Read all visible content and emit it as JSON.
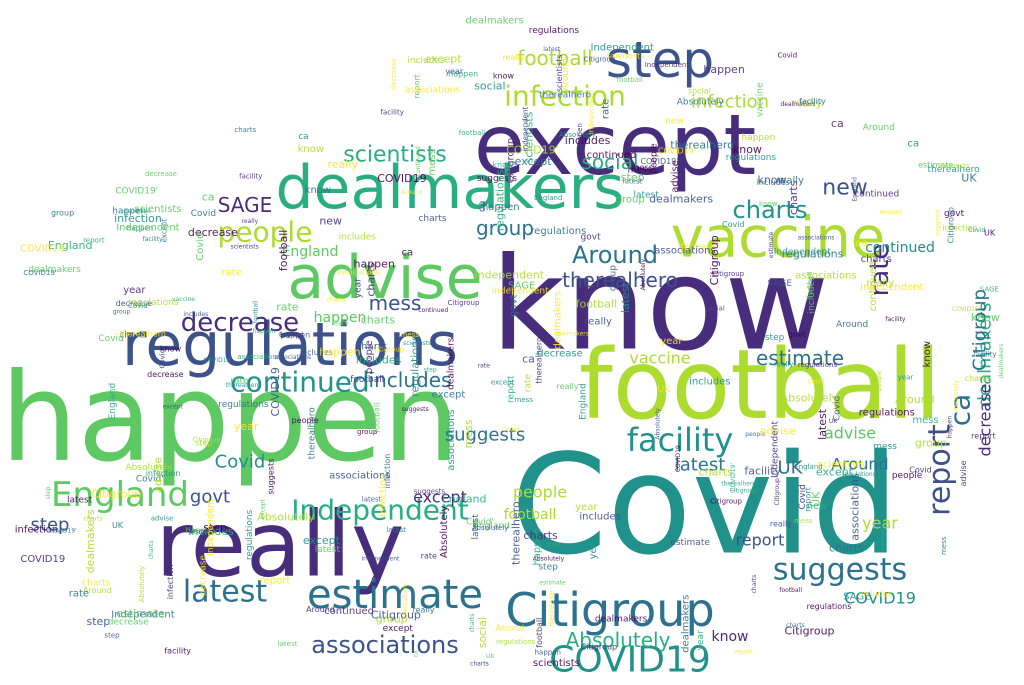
{
  "palette": {
    "purple": "#440154",
    "indigo": "#472d7b",
    "blue": "#3b528b",
    "slate": "#2c728e",
    "teal": "#21918c",
    "sea": "#28ae80",
    "green": "#5ec962",
    "lime": "#addc30",
    "yellow": "#fde725"
  },
  "words": [
    {
      "text": "know",
      "color": "indigo"
    },
    {
      "text": "Covid",
      "color": "teal"
    },
    {
      "text": "happen",
      "color": "green"
    },
    {
      "text": "football",
      "color": "lime"
    },
    {
      "text": "except",
      "color": "indigo"
    },
    {
      "text": "really",
      "color": "indigo"
    },
    {
      "text": "regulations",
      "color": "blue"
    },
    {
      "text": "dealmakers",
      "color": "sea"
    },
    {
      "text": "advise",
      "color": "green"
    },
    {
      "text": "vaccine",
      "color": "lime"
    },
    {
      "text": "step",
      "color": "blue"
    },
    {
      "text": "Citigroup",
      "color": "slate"
    },
    {
      "text": "estimate",
      "color": "slate"
    },
    {
      "text": "COVID19",
      "color": "teal"
    },
    {
      "text": "England",
      "color": "green"
    },
    {
      "text": "facility",
      "color": "teal"
    },
    {
      "text": "continued",
      "color": "teal"
    },
    {
      "text": "suggests",
      "color": "slate"
    },
    {
      "text": "infection",
      "color": "lime"
    },
    {
      "text": "latest",
      "color": "slate"
    },
    {
      "text": "report",
      "color": "blue"
    },
    {
      "text": "Independent",
      "color": "sea"
    },
    {
      "text": "decrease",
      "color": "indigo"
    },
    {
      "text": "people",
      "color": "lime"
    },
    {
      "text": "associations",
      "color": "blue"
    },
    {
      "text": "Around",
      "color": "slate"
    },
    {
      "text": "therealhero",
      "color": "blue"
    },
    {
      "text": "scientists",
      "color": "sea"
    },
    {
      "text": "charts",
      "color": "teal"
    },
    {
      "text": "rate",
      "color": "indigo"
    },
    {
      "text": "includes",
      "color": "slate"
    },
    {
      "text": "social",
      "color": "sea"
    },
    {
      "text": "group",
      "color": "slate"
    },
    {
      "text": "mess",
      "color": "blue"
    },
    {
      "text": "SAGE",
      "color": "indigo"
    },
    {
      "text": "new",
      "color": "blue"
    },
    {
      "text": "Absolutely",
      "color": "sea"
    },
    {
      "text": "govt",
      "color": "blue"
    },
    {
      "text": "year",
      "color": "lime"
    },
    {
      "text": "UK",
      "color": "slate"
    },
    {
      "text": "ca",
      "color": "slate"
    },
    {
      "text": "Covid'",
      "color": "teal"
    },
    {
      "text": "COVID19'",
      "color": "teal"
    }
  ]
}
